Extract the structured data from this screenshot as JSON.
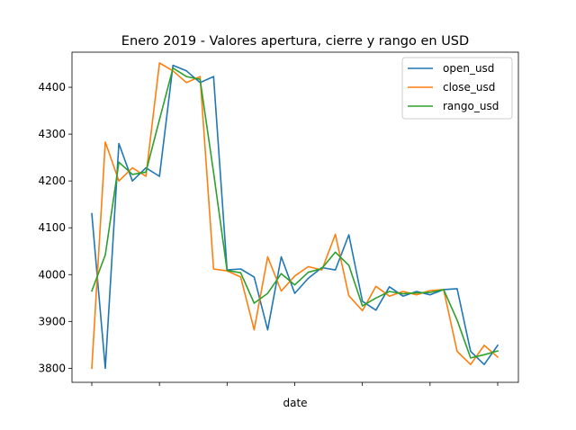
{
  "chart_data": {
    "type": "line",
    "title": "Enero 2019 - Valores apertura, cierre y rango en USD",
    "xlabel": "date",
    "ylabel": "",
    "ylim": [
      3770,
      4475
    ],
    "yticks": [
      3800,
      3900,
      4000,
      4100,
      4200,
      4300,
      4400
    ],
    "ytick_labels": [
      "3800",
      "3900",
      "4000",
      "4100",
      "4200",
      "4300",
      "4400"
    ],
    "x_count": 31,
    "xticks": [
      0,
      5,
      10,
      15,
      20,
      25,
      30
    ],
    "legend_position": "upper-right",
    "series": [
      {
        "name": "open_usd",
        "color": "#1f77b4",
        "values": [
          4130,
          3800,
          4280,
          4200,
          4228,
          4210,
          4447,
          4435,
          4410,
          4423,
          4010,
          4012,
          3995,
          3882,
          4038,
          3960,
          3992,
          4015,
          4010,
          4085,
          3943,
          3924,
          3974,
          3954,
          3964,
          3957,
          3968,
          3970,
          3836,
          3808,
          3849
        ]
      },
      {
        "name": "close_usd",
        "color": "#ff7f0e",
        "values": [
          3800,
          4283,
          4200,
          4228,
          4210,
          4452,
          4435,
          4410,
          4423,
          4012,
          4008,
          3995,
          3882,
          4038,
          3965,
          3997,
          4017,
          4010,
          4086,
          3955,
          3923,
          3975,
          3954,
          3964,
          3957,
          3966,
          3968,
          3836,
          3808,
          3849,
          3824
        ]
      },
      {
        "name": "rango_usd",
        "color": "#2ca02c",
        "values": [
          3965,
          4042,
          4240,
          4214,
          4219,
          4331,
          4441,
          4423,
          4417,
          4218,
          4009,
          4004,
          3939,
          3960,
          4002,
          3978,
          4005,
          4013,
          4048,
          4020,
          3933,
          3950,
          3964,
          3959,
          3961,
          3962,
          3968,
          3903,
          3822,
          3829,
          3837
        ]
      }
    ]
  }
}
